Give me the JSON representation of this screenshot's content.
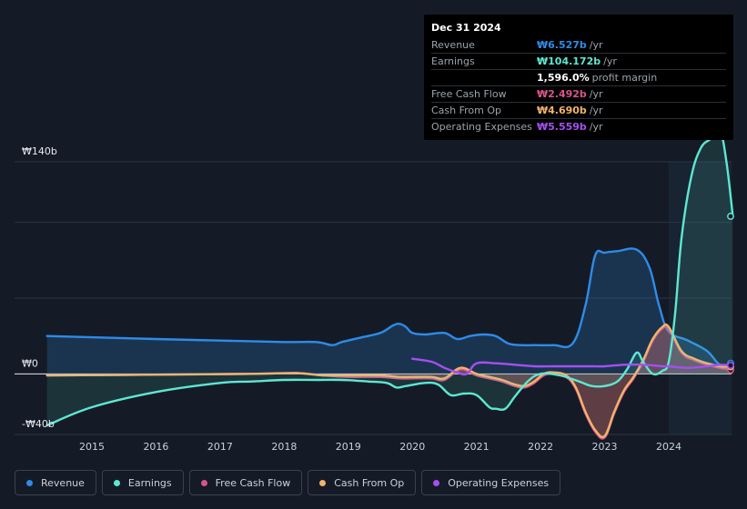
{
  "tooltip": {
    "date": "Dec 31 2024",
    "rows": [
      {
        "label": "Revenue",
        "value": "₩6.527b",
        "unit": "/yr",
        "color": "#2f8be8"
      },
      {
        "label": "Earnings",
        "value": "₩104.172b",
        "unit": "/yr",
        "color": "#5ee7d1"
      },
      {
        "label": "",
        "value": "1,596.0%",
        "unit": "profit margin",
        "color": "#ffffff"
      },
      {
        "label": "Free Cash Flow",
        "value": "₩2.492b",
        "unit": "/yr",
        "color": "#d6558a"
      },
      {
        "label": "Cash From Op",
        "value": "₩4.690b",
        "unit": "/yr",
        "color": "#f2b36b"
      },
      {
        "label": "Operating Expenses",
        "value": "₩5.559b",
        "unit": "/yr",
        "color": "#a64ef0"
      }
    ]
  },
  "legend": [
    {
      "label": "Revenue",
      "color": "#2f8be8"
    },
    {
      "label": "Earnings",
      "color": "#5ee7d1"
    },
    {
      "label": "Free Cash Flow",
      "color": "#d6558a"
    },
    {
      "label": "Cash From Op",
      "color": "#f2b36b"
    },
    {
      "label": "Operating Expenses",
      "color": "#a64ef0"
    }
  ],
  "chart_data": {
    "type": "area",
    "y_tick_labels": [
      "₩140b",
      "₩0",
      "-₩40b"
    ],
    "ylim": [
      -40,
      140
    ],
    "x_tick_labels": [
      "2015",
      "2016",
      "2017",
      "2018",
      "2019",
      "2020",
      "2021",
      "2022",
      "2023",
      "2024"
    ],
    "xlim": [
      2014.3,
      2025.0
    ],
    "forecast_shade_start": 2024.0,
    "grid": true,
    "series": [
      {
        "name": "Revenue",
        "color": "#2f8be8",
        "fill": true,
        "x": [
          2014.3,
          2016.0,
          2017.0,
          2018.0,
          2018.5,
          2018.75,
          2018.9,
          2019.2,
          2019.5,
          2019.7,
          2019.8,
          2019.9,
          2020.0,
          2020.2,
          2020.5,
          2020.7,
          2020.9,
          2021.1,
          2021.3,
          2021.5,
          2021.7,
          2021.9,
          2022.2,
          2022.5,
          2022.7,
          2022.85,
          2023.0,
          2023.2,
          2023.5,
          2023.7,
          2023.85,
          2024.0,
          2024.3,
          2024.6,
          2024.8,
          2025.0
        ],
        "values": [
          25,
          23,
          22,
          21,
          21,
          19,
          21,
          24,
          27,
          32,
          33,
          31,
          27,
          26,
          27,
          23,
          25,
          26,
          25,
          20,
          19,
          19,
          19,
          20,
          45,
          78,
          80,
          81,
          82,
          70,
          45,
          28,
          22,
          15,
          6,
          7
        ]
      },
      {
        "name": "Earnings",
        "color": "#5ee7d1",
        "fill": true,
        "x": [
          2014.3,
          2015.0,
          2016.0,
          2017.0,
          2017.5,
          2018.0,
          2018.5,
          2018.9,
          2019.3,
          2019.6,
          2019.75,
          2019.9,
          2020.2,
          2020.4,
          2020.6,
          2020.8,
          2021.0,
          2021.2,
          2021.3,
          2021.45,
          2021.6,
          2021.8,
          2022.0,
          2022.3,
          2022.6,
          2022.8,
          2023.0,
          2023.2,
          2023.35,
          2023.5,
          2023.6,
          2023.75,
          2023.9,
          2024.0,
          2024.1,
          2024.2,
          2024.35,
          2024.5,
          2024.65,
          2024.8,
          2024.9,
          2025.0
        ],
        "values": [
          -34,
          -22,
          -12,
          -6,
          -5,
          -4,
          -4,
          -4,
          -5,
          -6,
          -9,
          -8,
          -6,
          -7,
          -14,
          -13,
          -14,
          -22,
          -23,
          -23,
          -15,
          -5,
          0,
          -1,
          -5,
          -8,
          -8,
          -5,
          3,
          14,
          8,
          0,
          2,
          8,
          40,
          90,
          130,
          149,
          155,
          160,
          140,
          104
        ]
      },
      {
        "name": "Free Cash Flow",
        "color": "#d6558a",
        "fill": true,
        "x": [
          2014.3,
          2016.0,
          2017.5,
          2018.2,
          2018.6,
          2019.0,
          2019.5,
          2019.8,
          2020.0,
          2020.3,
          2020.5,
          2020.75,
          2021.0,
          2021.2,
          2021.4,
          2021.6,
          2021.75,
          2021.9,
          2022.05,
          2022.2,
          2022.4,
          2022.55,
          2022.7,
          2022.85,
          2023.0,
          2023.15,
          2023.3,
          2023.45,
          2023.6,
          2023.75,
          2023.9,
          2024.0,
          2024.2,
          2024.4,
          2024.6,
          2024.8,
          2025.0
        ],
        "values": [
          -1,
          -0.5,
          0,
          0.5,
          -1,
          -2,
          -2,
          -3,
          -3,
          -3,
          -4,
          3,
          -1,
          -3,
          -5,
          -8,
          -9,
          -6,
          -1,
          0,
          -2,
          -10,
          -26,
          -38,
          -42,
          -26,
          -12,
          -3,
          8,
          22,
          30,
          30,
          14,
          9,
          6,
          4,
          2.5
        ]
      },
      {
        "name": "Cash From Op",
        "color": "#f2b36b",
        "fill": true,
        "x": [
          2014.3,
          2016.0,
          2017.5,
          2018.2,
          2018.6,
          2019.0,
          2019.5,
          2019.8,
          2020.0,
          2020.3,
          2020.5,
          2020.75,
          2021.0,
          2021.2,
          2021.4,
          2021.6,
          2021.75,
          2021.9,
          2022.05,
          2022.2,
          2022.4,
          2022.55,
          2022.7,
          2022.85,
          2023.0,
          2023.15,
          2023.3,
          2023.45,
          2023.6,
          2023.75,
          2023.9,
          2024.0,
          2024.2,
          2024.4,
          2024.6,
          2024.8,
          2025.0
        ],
        "values": [
          -1,
          -0.5,
          0,
          0.5,
          -1,
          -1,
          -1,
          -2,
          -2,
          -2,
          -3,
          4,
          0,
          -2,
          -4,
          -7,
          -8,
          -5,
          0,
          1,
          -1,
          -9,
          -25,
          -37,
          -41,
          -25,
          -11,
          -2,
          9,
          23,
          31,
          31,
          15,
          10,
          7,
          5,
          4.7
        ]
      },
      {
        "name": "Operating Expenses",
        "color": "#a64ef0",
        "fill": false,
        "x": [
          2020.0,
          2020.3,
          2020.5,
          2020.7,
          2020.85,
          2021.0,
          2021.3,
          2021.6,
          2021.9,
          2022.2,
          2022.5,
          2022.8,
          2023.0,
          2023.3,
          2023.6,
          2023.9,
          2024.0,
          2024.3,
          2024.6,
          2024.8,
          2025.0
        ],
        "values": [
          10,
          8,
          4,
          1,
          0,
          7,
          7,
          6,
          5,
          5,
          5,
          5,
          5,
          6,
          6,
          5,
          5,
          4,
          5,
          6,
          5.6
        ]
      }
    ]
  }
}
